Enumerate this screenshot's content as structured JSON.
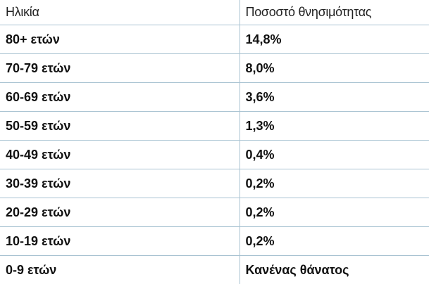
{
  "table": {
    "header": [
      "Ηλικία",
      "Ποσοστό θνησιμότητας"
    ],
    "rows": [
      [
        "80+ ετών",
        "14,8%"
      ],
      [
        "70-79 ετών",
        "8,0%"
      ],
      [
        "60-69 ετών",
        "3,6%"
      ],
      [
        "50-59 ετών",
        "1,3%"
      ],
      [
        "40-49 ετών",
        "0,4%"
      ],
      [
        "30-39 ετών",
        "0,2%"
      ],
      [
        "20-29 ετών",
        "0,2%"
      ],
      [
        "10-19 ετών",
        "0,2%"
      ],
      [
        "0-9 ετών",
        "Κανένας θάνατος"
      ]
    ]
  }
}
